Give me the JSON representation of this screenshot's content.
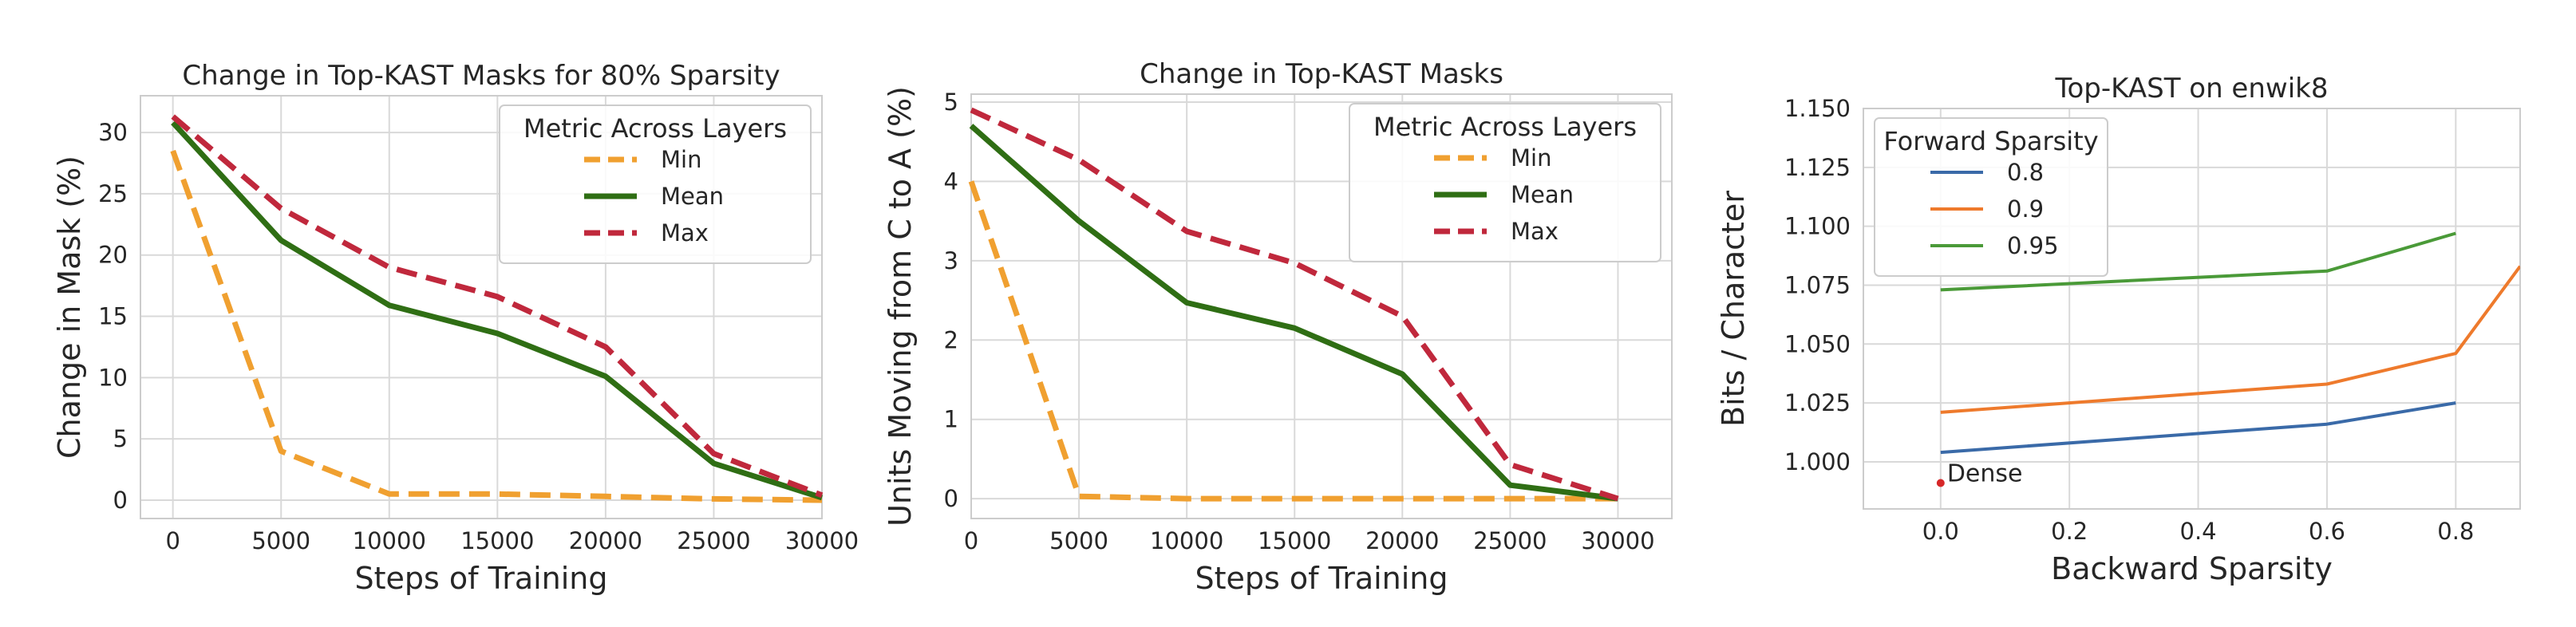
{
  "chart_data": [
    {
      "type": "line",
      "title": "Change in Top-KAST Masks for 80% Sparsity",
      "xlabel": "Steps of Training",
      "ylabel": "Change in Mask (%)",
      "xlim": [
        -1500,
        30000
      ],
      "ylim": [
        -1.5,
        33
      ],
      "xticks": [
        0,
        5000,
        10000,
        15000,
        20000,
        25000,
        30000
      ],
      "yticks": [
        0,
        5,
        10,
        15,
        20,
        25,
        30
      ],
      "grid": true,
      "legend": {
        "title": "Metric Across Layers",
        "placement": "top-right"
      },
      "x": [
        0,
        5000,
        10000,
        15000,
        20000,
        25000,
        30000
      ],
      "series": [
        {
          "name": "Min",
          "color": "#f0a030",
          "dash": "dashed",
          "values": [
            28.5,
            4.0,
            0.5,
            0.5,
            0.3,
            0.1,
            0.0
          ]
        },
        {
          "name": "Mean",
          "color": "#2f6e14",
          "dash": "solid",
          "values": [
            30.8,
            21.2,
            15.9,
            13.6,
            10.1,
            3.0,
            0.2
          ]
        },
        {
          "name": "Max",
          "color": "#c0283c",
          "dash": "dashed",
          "values": [
            31.3,
            23.8,
            19.0,
            16.6,
            12.5,
            3.8,
            0.4
          ]
        }
      ]
    },
    {
      "type": "line",
      "title": "Change in Top-KAST Masks",
      "xlabel": "Steps of Training",
      "ylabel": "Units Moving from C to A (%)",
      "xlim": [
        0,
        32500
      ],
      "ylim": [
        -0.25,
        5.1
      ],
      "xticks": [
        0,
        5000,
        10000,
        15000,
        20000,
        25000,
        30000
      ],
      "yticks": [
        0,
        1,
        2,
        3,
        4,
        5
      ],
      "grid": true,
      "legend": {
        "title": "Metric Across Layers",
        "placement": "top-right"
      },
      "x": [
        0,
        5000,
        10000,
        15000,
        20000,
        25000,
        30000
      ],
      "series": [
        {
          "name": "Min",
          "color": "#f0a030",
          "dash": "dashed",
          "values": [
            4.0,
            0.03,
            0.0,
            0.0,
            0.0,
            0.0,
            0.0
          ]
        },
        {
          "name": "Mean",
          "color": "#2f6e14",
          "dash": "solid",
          "values": [
            4.7,
            3.5,
            2.47,
            2.15,
            1.57,
            0.17,
            0.0
          ]
        },
        {
          "name": "Max",
          "color": "#c0283c",
          "dash": "dashed",
          "values": [
            4.9,
            4.27,
            3.37,
            2.97,
            2.3,
            0.43,
            0.0
          ]
        }
      ]
    },
    {
      "type": "line",
      "title": "Top-KAST on enwik8",
      "xlabel": "Backward Sparsity",
      "ylabel": "Bits / Character",
      "xlim": [
        -0.12,
        0.9
      ],
      "ylim": [
        0.98,
        1.15
      ],
      "xticks": [
        0.0,
        0.2,
        0.4,
        0.6,
        0.8
      ],
      "yticks": [
        1.0,
        1.025,
        1.05,
        1.075,
        1.1,
        1.125,
        1.15
      ],
      "grid": true,
      "legend": {
        "title": "Forward Sparsity",
        "placement": "top-left"
      },
      "series": [
        {
          "name": "0.8",
          "color": "#3a6aa8",
          "x": [
            0.0,
            0.6,
            0.8
          ],
          "values": [
            1.004,
            1.016,
            1.025
          ]
        },
        {
          "name": "0.9",
          "color": "#ee7a2c",
          "x": [
            0.0,
            0.6,
            0.8,
            0.9
          ],
          "values": [
            1.021,
            1.033,
            1.046,
            1.083
          ]
        },
        {
          "name": "0.95",
          "color": "#4a9a38",
          "x": [
            0.0,
            0.6,
            0.8
          ],
          "values": [
            1.073,
            1.081,
            1.097
          ]
        }
      ],
      "annotation": {
        "label": "Dense",
        "x": 0.0,
        "y": 0.991,
        "color": "#d62728"
      }
    }
  ]
}
